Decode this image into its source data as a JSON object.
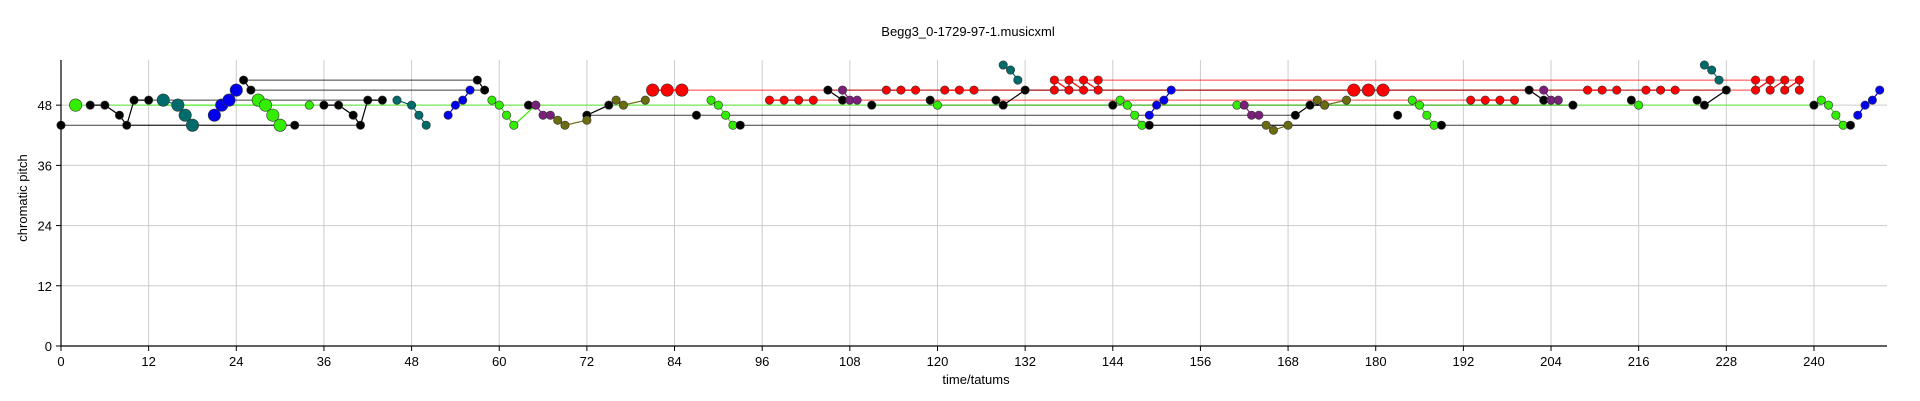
{
  "chart_data": {
    "type": "scatter",
    "title": "Begg3_0-1729-97-1.musicxml",
    "xlabel": "time/tatums",
    "ylabel": "chromatic pitch",
    "xlim": [
      0,
      250
    ],
    "ylim": [
      0,
      57
    ],
    "xticks": [
      0,
      12,
      24,
      36,
      48,
      60,
      72,
      84,
      96,
      108,
      120,
      132,
      144,
      156,
      168,
      180,
      192,
      204,
      216,
      228,
      240
    ],
    "yticks": [
      0,
      12,
      24,
      36,
      48
    ],
    "grid": true,
    "legend": "none",
    "colors": {
      "red": "#ff0000",
      "green": "#33ee00",
      "black": "#000000",
      "blue": "#0000ee",
      "teal": "#006b6b",
      "purple": "#7a1f7a",
      "olive": "#6b6b10"
    },
    "series": [
      {
        "color": "red",
        "points": [
          [
            81,
            51,
            2
          ],
          [
            83,
            51,
            2
          ],
          [
            85,
            51,
            2
          ],
          [
            97,
            49,
            1
          ],
          [
            99,
            49,
            1
          ],
          [
            101,
            49,
            1
          ],
          [
            103,
            49,
            1
          ],
          [
            113,
            51,
            1
          ],
          [
            115,
            51,
            1
          ],
          [
            117,
            51,
            1
          ],
          [
            121,
            51,
            1
          ],
          [
            123,
            51,
            1
          ],
          [
            125,
            51,
            1
          ],
          [
            136,
            51,
            1
          ],
          [
            136,
            53,
            1
          ],
          [
            138,
            51,
            1
          ],
          [
            138,
            53,
            1
          ],
          [
            140,
            51,
            1
          ],
          [
            140,
            53,
            1
          ],
          [
            142,
            51,
            1
          ],
          [
            142,
            53,
            1
          ],
          [
            177,
            51,
            2
          ],
          [
            179,
            51,
            2
          ],
          [
            181,
            51,
            2
          ],
          [
            193,
            49,
            1
          ],
          [
            195,
            49,
            1
          ],
          [
            197,
            49,
            1
          ],
          [
            199,
            49,
            1
          ],
          [
            209,
            51,
            1
          ],
          [
            211,
            51,
            1
          ],
          [
            213,
            51,
            1
          ],
          [
            217,
            51,
            1
          ],
          [
            219,
            51,
            1
          ],
          [
            221,
            51,
            1
          ],
          [
            232,
            53,
            1
          ],
          [
            232,
            51,
            1
          ],
          [
            234,
            53,
            1
          ],
          [
            234,
            51,
            1
          ],
          [
            236,
            53,
            1
          ],
          [
            236,
            51,
            1
          ],
          [
            238,
            53,
            1
          ],
          [
            238,
            51,
            1
          ]
        ]
      },
      {
        "color": "green",
        "points": [
          [
            2,
            48,
            2
          ],
          [
            27,
            49,
            2
          ],
          [
            28,
            48,
            2
          ],
          [
            29,
            46,
            2
          ],
          [
            30,
            44,
            2
          ],
          [
            34,
            48,
            1
          ],
          [
            59,
            49,
            1
          ],
          [
            60,
            48,
            1
          ],
          [
            61,
            46,
            1
          ],
          [
            62,
            44,
            1
          ],
          [
            65,
            48,
            1
          ],
          [
            89,
            49,
            1
          ],
          [
            90,
            48,
            1
          ],
          [
            91,
            46,
            1
          ],
          [
            92,
            44,
            1
          ],
          [
            120,
            48,
            1
          ],
          [
            145,
            49,
            1
          ],
          [
            146,
            48,
            1
          ],
          [
            147,
            46,
            1
          ],
          [
            148,
            44,
            1
          ],
          [
            161,
            48,
            1
          ],
          [
            185,
            49,
            1
          ],
          [
            186,
            48,
            1
          ],
          [
            187,
            46,
            1
          ],
          [
            188,
            44,
            1
          ],
          [
            216,
            48,
            1
          ],
          [
            241,
            49,
            1
          ],
          [
            242,
            48,
            1
          ],
          [
            243,
            46,
            1
          ],
          [
            244,
            44,
            1
          ]
        ]
      },
      {
        "color": "black",
        "points": [
          [
            0,
            44,
            1
          ],
          [
            4,
            48,
            1
          ],
          [
            6,
            48,
            1
          ],
          [
            8,
            46,
            1
          ],
          [
            9,
            44,
            1
          ],
          [
            10,
            49,
            1
          ],
          [
            12,
            49,
            1
          ],
          [
            25,
            53,
            1
          ],
          [
            26,
            51,
            1
          ],
          [
            32,
            44,
            1
          ],
          [
            36,
            48,
            1
          ],
          [
            38,
            48,
            1
          ],
          [
            40,
            46,
            1
          ],
          [
            41,
            44,
            1
          ],
          [
            42,
            49,
            1
          ],
          [
            44,
            49,
            1
          ],
          [
            57,
            53,
            1
          ],
          [
            58,
            51,
            1
          ],
          [
            64,
            48,
            1
          ],
          [
            72,
            46,
            1
          ],
          [
            75,
            48,
            1
          ],
          [
            87,
            46,
            1
          ],
          [
            93,
            44,
            1
          ],
          [
            105,
            51,
            1
          ],
          [
            107,
            49,
            1
          ],
          [
            111,
            48,
            1
          ],
          [
            119,
            49,
            1
          ],
          [
            128,
            49,
            1
          ],
          [
            129,
            48,
            1
          ],
          [
            132,
            51,
            1
          ],
          [
            144,
            48,
            1
          ],
          [
            149,
            44,
            1
          ],
          [
            169,
            46,
            1
          ],
          [
            171,
            48,
            1
          ],
          [
            173,
            48,
            1
          ],
          [
            183,
            46,
            1
          ],
          [
            189,
            44,
            1
          ],
          [
            201,
            51,
            1
          ],
          [
            203,
            49,
            1
          ],
          [
            207,
            48,
            1
          ],
          [
            215,
            49,
            1
          ],
          [
            224,
            49,
            1
          ],
          [
            225,
            48,
            1
          ],
          [
            228,
            51,
            1
          ],
          [
            240,
            48,
            1
          ],
          [
            245,
            44,
            1
          ]
        ]
      },
      {
        "color": "blue",
        "points": [
          [
            21,
            46,
            2
          ],
          [
            22,
            48,
            2
          ],
          [
            23,
            49,
            2
          ],
          [
            24,
            51,
            2
          ],
          [
            53,
            46,
            1
          ],
          [
            54,
            48,
            1
          ],
          [
            55,
            49,
            1
          ],
          [
            56,
            51,
            1
          ],
          [
            149,
            46,
            1
          ],
          [
            150,
            48,
            1
          ],
          [
            151,
            49,
            1
          ],
          [
            152,
            51,
            1
          ],
          [
            246,
            46,
            1
          ],
          [
            247,
            48,
            1
          ],
          [
            248,
            49,
            1
          ],
          [
            249,
            51,
            1
          ]
        ]
      },
      {
        "color": "teal",
        "points": [
          [
            14,
            49,
            2
          ],
          [
            16,
            48,
            2
          ],
          [
            17,
            46,
            2
          ],
          [
            18,
            44,
            2
          ],
          [
            46,
            49,
            1
          ],
          [
            48,
            48,
            1
          ],
          [
            49,
            46,
            1
          ],
          [
            50,
            44,
            1
          ],
          [
            129,
            56,
            1
          ],
          [
            130,
            55,
            1
          ],
          [
            131,
            53,
            1
          ],
          [
            225,
            56,
            1
          ],
          [
            226,
            55,
            1
          ],
          [
            227,
            53,
            1
          ]
        ]
      },
      {
        "color": "purple",
        "points": [
          [
            65,
            48,
            1
          ],
          [
            66,
            46,
            1
          ],
          [
            67,
            46,
            1
          ],
          [
            107,
            51,
            1
          ],
          [
            108,
            49,
            1
          ],
          [
            109,
            49,
            1
          ],
          [
            162,
            48,
            1
          ],
          [
            163,
            46,
            1
          ],
          [
            164,
            46,
            1
          ],
          [
            203,
            51,
            1
          ],
          [
            204,
            49,
            1
          ],
          [
            205,
            49,
            1
          ]
        ]
      },
      {
        "color": "olive",
        "points": [
          [
            68,
            45,
            1
          ],
          [
            69,
            44,
            1
          ],
          [
            72,
            45,
            1
          ],
          [
            76,
            49,
            1
          ],
          [
            77,
            48,
            1
          ],
          [
            80,
            49,
            1
          ],
          [
            165,
            44,
            1
          ],
          [
            166,
            43,
            1
          ],
          [
            168,
            44,
            1
          ],
          [
            172,
            49,
            1
          ],
          [
            173,
            48,
            1
          ],
          [
            176,
            49,
            1
          ]
        ]
      }
    ],
    "sustain_lines": [
      {
        "color": "black",
        "x": [
          0,
          32
        ],
        "y": 44
      },
      {
        "color": "black",
        "x": [
          9,
          41
        ],
        "y": 44
      },
      {
        "color": "black",
        "x": [
          26,
          58
        ],
        "y": 51
      },
      {
        "color": "black",
        "x": [
          25,
          57
        ],
        "y": 53
      },
      {
        "color": "black",
        "x": [
          10,
          44
        ],
        "y": 49
      },
      {
        "color": "black",
        "x": [
          72,
          169
        ],
        "y": 46
      },
      {
        "color": "black",
        "x": [
          93,
          189
        ],
        "y": 44
      },
      {
        "color": "black",
        "x": [
          111,
          207
        ],
        "y": 48
      },
      {
        "color": "black",
        "x": [
          149,
          245
        ],
        "y": 44
      },
      {
        "color": "black",
        "x": [
          105,
          201
        ],
        "y": 51
      },
      {
        "color": "black",
        "x": [
          132,
          228
        ],
        "y": 51
      },
      {
        "color": "red",
        "x": [
          81,
          232
        ],
        "y": 51
      },
      {
        "color": "red",
        "x": [
          136,
          238
        ],
        "y": 53
      },
      {
        "color": "red",
        "x": [
          97,
          199
        ],
        "y": 49
      },
      {
        "color": "green",
        "x": [
          2,
          65
        ],
        "y": 48
      },
      {
        "color": "green",
        "x": [
          65,
          120
        ],
        "y": 48
      },
      {
        "color": "green",
        "x": [
          120,
          241
        ],
        "y": 48
      },
      {
        "color": "green",
        "x": [
          14,
          34
        ],
        "y": 48
      }
    ]
  }
}
